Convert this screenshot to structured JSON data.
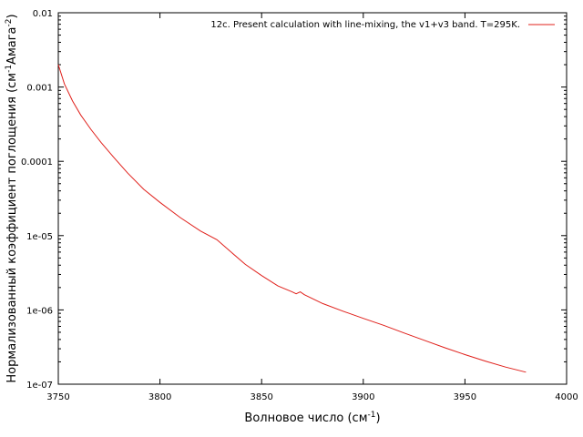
{
  "chart_data": {
    "type": "line",
    "xlabel": "Волновое число (см",
    "xlabel_sup": "-1",
    "xlabel_end": ")",
    "ylabel": "Нормализованный коэффициент поглощения (см",
    "ylabel_sup1": "-1",
    "ylabel_mid": "Амага",
    "ylabel_sup2": "-2",
    "ylabel_end": ")",
    "xlim": [
      3750,
      4000
    ],
    "ylim": [
      1e-07,
      0.01
    ],
    "yscale": "log",
    "grid": false,
    "legend_position": "top-right",
    "x_ticks": [
      {
        "value": 3750,
        "label": "3750"
      },
      {
        "value": 3800,
        "label": "3800"
      },
      {
        "value": 3850,
        "label": "3850"
      },
      {
        "value": 3900,
        "label": "3900"
      },
      {
        "value": 3950,
        "label": "3950"
      },
      {
        "value": 4000,
        "label": "4000"
      }
    ],
    "y_ticks": [
      {
        "value": 1e-07,
        "label": "1e-07"
      },
      {
        "value": 1e-06,
        "label": "1e-06"
      },
      {
        "value": 1e-05,
        "label": "1e-05"
      },
      {
        "value": 0.0001,
        "label": "0.0001"
      },
      {
        "value": 0.001,
        "label": "0.001"
      },
      {
        "value": 0.01,
        "label": "0.01"
      }
    ],
    "series": [
      {
        "name": "12c. Present calculation with line-mixing, the v1+v3 band. T=295K.",
        "color": "#e0201b",
        "x": [
          3750,
          3753,
          3757,
          3761,
          3766,
          3771,
          3777,
          3784,
          3792,
          3800,
          3810,
          3820,
          3828,
          3835,
          3842,
          3850,
          3858,
          3865,
          3867,
          3869,
          3871,
          3880,
          3890,
          3900,
          3910,
          3920,
          3930,
          3940,
          3950,
          3960,
          3970,
          3980
        ],
        "y": [
          0.002,
          0.0011,
          0.00065,
          0.00042,
          0.00027,
          0.00018,
          0.000115,
          7e-05,
          4.2e-05,
          2.8e-05,
          1.75e-05,
          1.15e-05,
          8.8e-06,
          6e-06,
          4.1e-06,
          2.9e-06,
          2.1e-06,
          1.75e-06,
          1.65e-06,
          1.75e-06,
          1.6e-06,
          1.22e-06,
          9.6e-07,
          7.7e-07,
          6.2e-07,
          4.9e-07,
          3.9e-07,
          3.1e-07,
          2.5e-07,
          2.05e-07,
          1.7e-07,
          1.45e-07
        ]
      }
    ]
  }
}
